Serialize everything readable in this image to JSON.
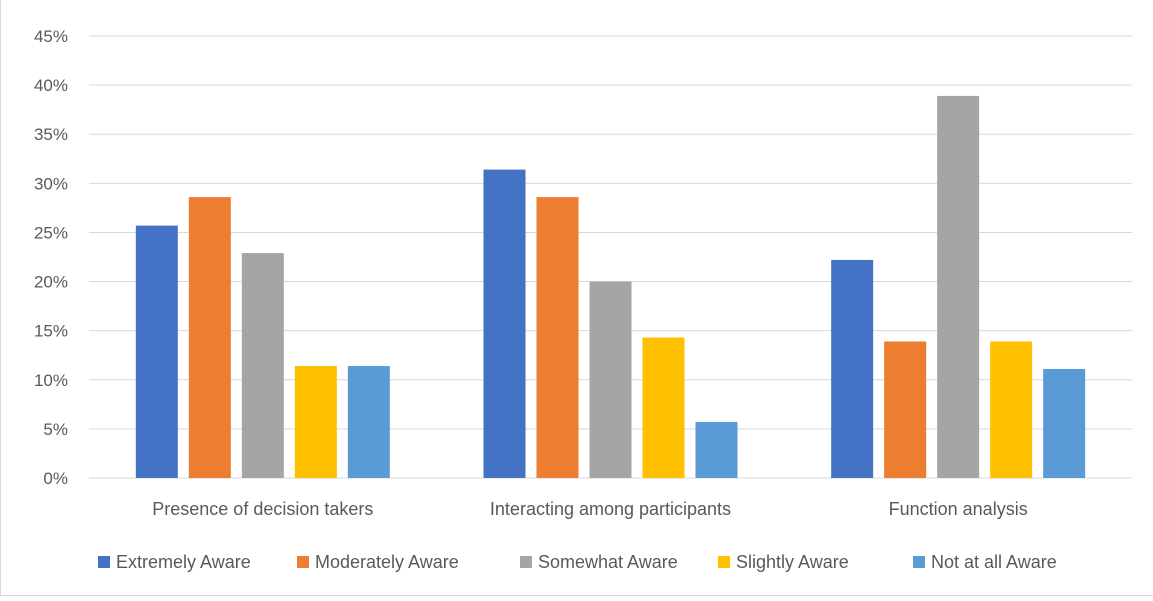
{
  "chart_data": {
    "type": "bar",
    "categories": [
      "Presence of decision takers",
      "Interacting among participants",
      "Function analysis"
    ],
    "series": [
      {
        "name": "Extremely Aware",
        "color": "#4472c4",
        "values": [
          25.7,
          31.4,
          22.2
        ]
      },
      {
        "name": "Moderately Aware",
        "color": "#ed7d31",
        "values": [
          28.6,
          28.6,
          13.9
        ]
      },
      {
        "name": "Somewhat Aware",
        "color": "#a5a5a5",
        "values": [
          22.9,
          20.0,
          38.9
        ]
      },
      {
        "name": "Slightly Aware",
        "color": "#ffc000",
        "values": [
          11.4,
          14.3,
          13.9
        ]
      },
      {
        "name": "Not at all Aware",
        "color": "#5b9bd5",
        "values": [
          11.4,
          5.7,
          11.1
        ]
      }
    ],
    "ylim": [
      0,
      45
    ],
    "y_ticks": [
      "0%",
      "5%",
      "10%",
      "15%",
      "20%",
      "25%",
      "30%",
      "35%",
      "40%",
      "45%"
    ],
    "grid": true,
    "legend_position": "bottom",
    "title": "",
    "xlabel": "",
    "ylabel": ""
  }
}
